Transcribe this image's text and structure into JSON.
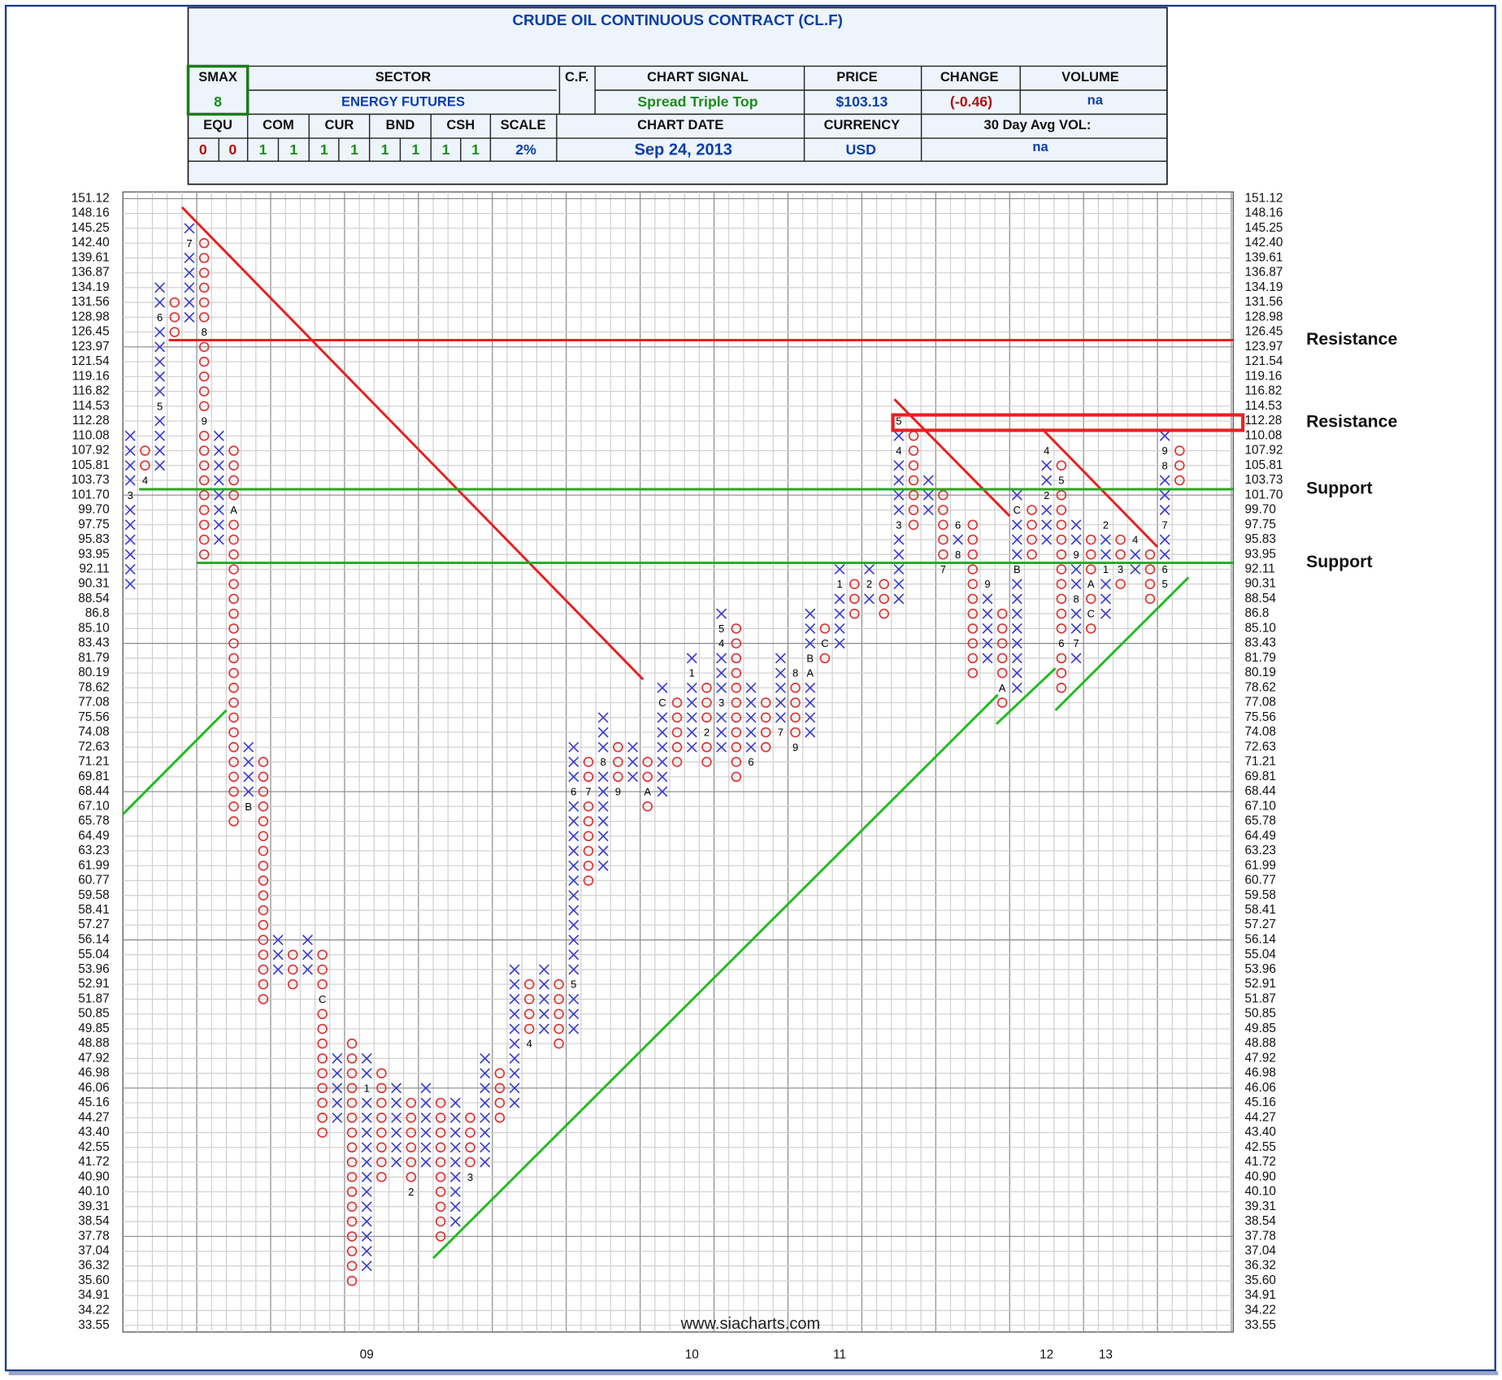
{
  "header": {
    "title": "CRUDE OIL CONTINUOUS CONTRACT (CL.F)",
    "smax_label": "SMAX",
    "smax": 8,
    "sector_label": "SECTOR",
    "sector": "ENERGY FUTURES",
    "cf_label": "C.F.",
    "signal_label": "CHART SIGNAL",
    "signal": "Spread Triple Top",
    "price_label": "PRICE",
    "price": "$103.13",
    "change_label": "CHANGE",
    "change": "(-0.46)",
    "volume_label": "VOLUME",
    "volume": "na",
    "flags": [
      {
        "label": "EQU",
        "values": [
          0,
          0
        ]
      },
      {
        "label": "COM",
        "values": [
          1,
          1
        ]
      },
      {
        "label": "CUR",
        "values": [
          1,
          1
        ]
      },
      {
        "label": "BND",
        "values": [
          1,
          1
        ]
      },
      {
        "label": "CSH",
        "values": [
          1,
          1
        ]
      }
    ],
    "scale_label": "SCALE",
    "scale": "2%",
    "date_label": "CHART DATE",
    "date": "Sep 24, 2013",
    "currency_label": "CURRENCY",
    "currency": "USD",
    "avg_vol_label": "30 Day Avg VOL:",
    "avg_vol": "na"
  },
  "chart_data": {
    "type": "point_and_figure",
    "log_scale": true,
    "grid": true,
    "x_color": "#3b3bd0",
    "o_color": "#e23030",
    "ylim": [
      33.55,
      151.12
    ],
    "yticks": [
      151.12,
      148.16,
      145.25,
      {
        "value": 142.4,
        "label": "142.40"
      },
      139.61,
      136.87,
      134.19,
      131.56,
      128.98,
      126.45,
      123.97,
      121.54,
      119.16,
      116.82,
      114.53,
      112.28,
      110.08,
      107.92,
      105.81,
      103.73,
      {
        "value": 101.7,
        "label": "101.70"
      },
      {
        "value": 99.7,
        "label": "99.70"
      },
      97.75,
      95.83,
      93.95,
      92.11,
      90.31,
      88.54,
      86.8,
      {
        "value": 85.1,
        "label": "85.10"
      },
      83.43,
      81.79,
      80.19,
      78.62,
      77.08,
      75.56,
      74.08,
      72.63,
      71.21,
      69.81,
      68.44,
      {
        "value": 67.1,
        "label": "67.10"
      },
      65.78,
      64.49,
      63.23,
      61.99,
      60.77,
      59.58,
      58.41,
      57.27,
      56.14,
      55.04,
      53.96,
      52.91,
      51.87,
      50.85,
      49.85,
      48.88,
      47.92,
      46.98,
      46.06,
      45.16,
      44.27,
      {
        "value": 43.4,
        "label": "43.40"
      },
      42.55,
      41.72,
      {
        "value": 40.9,
        "label": "40.90"
      },
      {
        "value": 40.1,
        "label": "40.10"
      },
      39.31,
      38.54,
      37.78,
      37.04,
      36.32,
      {
        "value": 35.6,
        "label": "35.60"
      },
      34.91,
      34.22,
      33.55
    ],
    "columns": [
      {
        "type": "X",
        "low": 90.31,
        "high": 110.08,
        "labels": [
          {
            "at": 101.7,
            "text": "3"
          }
        ]
      },
      {
        "type": "O",
        "low": 103.73,
        "high": 107.92,
        "labels": [
          {
            "at": 103.73,
            "text": "4"
          }
        ]
      },
      {
        "type": "X",
        "low": 105.81,
        "high": 134.19,
        "labels": [
          {
            "at": 114.53,
            "text": "5"
          },
          {
            "at": 128.98,
            "text": "6"
          }
        ]
      },
      {
        "type": "O",
        "low": 126.45,
        "high": 131.56
      },
      {
        "type": "X",
        "low": 128.98,
        "high": 145.25,
        "labels": [
          {
            "at": 142.4,
            "text": "7"
          }
        ]
      },
      {
        "type": "O",
        "low": 93.95,
        "high": 142.4,
        "labels": [
          {
            "at": 126.45,
            "text": "8"
          },
          {
            "at": 112.28,
            "text": "9"
          }
        ]
      },
      {
        "type": "X",
        "low": 95.83,
        "high": 110.08
      },
      {
        "type": "O",
        "low": 65.78,
        "high": 107.92,
        "labels": [
          {
            "at": 99.7,
            "text": "A"
          }
        ]
      },
      {
        "type": "X",
        "low": 67.1,
        "high": 72.63,
        "labels": [
          {
            "at": 67.1,
            "text": "B"
          }
        ]
      },
      {
        "type": "O",
        "low": 51.87,
        "high": 71.21
      },
      {
        "type": "X",
        "low": 53.96,
        "high": 56.14
      },
      {
        "type": "O",
        "low": 52.91,
        "high": 55.04
      },
      {
        "type": "X",
        "low": 53.96,
        "high": 56.14
      },
      {
        "type": "O",
        "low": 43.4,
        "high": 55.04,
        "labels": [
          {
            "at": 51.87,
            "text": "C"
          }
        ]
      },
      {
        "type": "X",
        "low": 44.27,
        "high": 47.92
      },
      {
        "type": "O",
        "low": 35.6,
        "high": 48.88
      },
      {
        "type": "X",
        "low": 36.32,
        "high": 47.92,
        "labels": [
          {
            "at": 46.06,
            "text": "1"
          }
        ],
        "year": "09"
      },
      {
        "type": "O",
        "low": 40.9,
        "high": 46.98
      },
      {
        "type": "X",
        "low": 41.72,
        "high": 46.06
      },
      {
        "type": "O",
        "low": 40.1,
        "high": 45.16,
        "labels": [
          {
            "at": 40.1,
            "text": "2"
          }
        ]
      },
      {
        "type": "X",
        "low": 41.72,
        "high": 46.06
      },
      {
        "type": "O",
        "low": 37.78,
        "high": 45.16
      },
      {
        "type": "X",
        "low": 38.54,
        "high": 45.16
      },
      {
        "type": "O",
        "low": 40.9,
        "high": 44.27,
        "labels": [
          {
            "at": 40.9,
            "text": "3"
          }
        ]
      },
      {
        "type": "X",
        "low": 41.72,
        "high": 47.92
      },
      {
        "type": "O",
        "low": 44.27,
        "high": 46.98
      },
      {
        "type": "X",
        "low": 45.16,
        "high": 53.96
      },
      {
        "type": "O",
        "low": 48.88,
        "high": 52.91,
        "labels": [
          {
            "at": 48.88,
            "text": "4"
          }
        ]
      },
      {
        "type": "X",
        "low": 49.85,
        "high": 53.96
      },
      {
        "type": "O",
        "low": 48.88,
        "high": 52.91
      },
      {
        "type": "X",
        "low": 49.85,
        "high": 72.63,
        "labels": [
          {
            "at": 52.91,
            "text": "5"
          },
          {
            "at": 68.44,
            "text": "6"
          }
        ]
      },
      {
        "type": "O",
        "low": 60.77,
        "high": 71.21,
        "labels": [
          {
            "at": 68.44,
            "text": "7"
          }
        ]
      },
      {
        "type": "X",
        "low": 61.99,
        "high": 75.56,
        "labels": [
          {
            "at": 71.21,
            "text": "8"
          }
        ]
      },
      {
        "type": "O",
        "low": 68.44,
        "high": 72.63,
        "labels": [
          {
            "at": 68.44,
            "text": "9"
          }
        ]
      },
      {
        "type": "X",
        "low": 69.81,
        "high": 72.63
      },
      {
        "type": "O",
        "low": 67.1,
        "high": 71.21,
        "labels": [
          {
            "at": 68.44,
            "text": "A"
          }
        ]
      },
      {
        "type": "X",
        "low": 68.44,
        "high": 78.62,
        "labels": [
          {
            "at": 77.08,
            "text": "C"
          }
        ]
      },
      {
        "type": "O",
        "low": 71.21,
        "high": 77.08
      },
      {
        "type": "X",
        "low": 72.63,
        "high": 81.79,
        "labels": [
          {
            "at": 80.19,
            "text": "1"
          }
        ],
        "year": "10"
      },
      {
        "type": "O",
        "low": 71.21,
        "high": 78.62,
        "labels": [
          {
            "at": 74.08,
            "text": "2"
          }
        ]
      },
      {
        "type": "X",
        "low": 72.63,
        "high": 86.8,
        "labels": [
          {
            "at": 77.08,
            "text": "3"
          },
          {
            "at": 83.43,
            "text": "4"
          },
          {
            "at": 85.1,
            "text": "5"
          }
        ]
      },
      {
        "type": "O",
        "low": 69.81,
        "high": 85.1
      },
      {
        "type": "X",
        "low": 71.21,
        "high": 78.62,
        "labels": [
          {
            "at": 71.21,
            "text": "6"
          }
        ]
      },
      {
        "type": "O",
        "low": 72.63,
        "high": 77.08
      },
      {
        "type": "X",
        "low": 74.08,
        "high": 81.79,
        "labels": [
          {
            "at": 74.08,
            "text": "7"
          }
        ]
      },
      {
        "type": "O",
        "low": 72.63,
        "high": 80.19,
        "labels": [
          {
            "at": 80.19,
            "text": "8"
          },
          {
            "at": 72.63,
            "text": "9"
          }
        ]
      },
      {
        "type": "X",
        "low": 74.08,
        "high": 86.8,
        "labels": [
          {
            "at": 80.19,
            "text": "A"
          },
          {
            "at": 81.79,
            "text": "B"
          }
        ]
      },
      {
        "type": "O",
        "low": 81.79,
        "high": 85.1,
        "labels": [
          {
            "at": 83.43,
            "text": "C"
          }
        ]
      },
      {
        "type": "X",
        "low": 83.43,
        "high": 92.11,
        "labels": [
          {
            "at": 90.31,
            "text": "1"
          }
        ],
        "year": "11"
      },
      {
        "type": "O",
        "low": 86.8,
        "high": 90.31
      },
      {
        "type": "X",
        "low": 88.54,
        "high": 92.11,
        "labels": [
          {
            "at": 90.31,
            "text": "2"
          }
        ]
      },
      {
        "type": "O",
        "low": 86.8,
        "high": 90.31
      },
      {
        "type": "X",
        "low": 88.54,
        "high": 112.28,
        "labels": [
          {
            "at": 97.75,
            "text": "3"
          },
          {
            "at": 107.92,
            "text": "4"
          },
          {
            "at": 112.28,
            "text": "5"
          }
        ]
      },
      {
        "type": "O",
        "low": 97.75,
        "high": 110.08
      },
      {
        "type": "X",
        "low": 99.7,
        "high": 103.73
      },
      {
        "type": "O",
        "low": 92.11,
        "high": 101.7,
        "labels": [
          {
            "at": 92.11,
            "text": "7"
          }
        ]
      },
      {
        "type": "X",
        "low": 93.95,
        "high": 97.75,
        "labels": [
          {
            "at": 97.75,
            "text": "6"
          },
          {
            "at": 93.95,
            "text": "8"
          }
        ]
      },
      {
        "type": "O",
        "low": 80.19,
        "high": 97.75
      },
      {
        "type": "X",
        "low": 81.79,
        "high": 90.31,
        "labels": [
          {
            "at": 90.31,
            "text": "9"
          }
        ]
      },
      {
        "type": "O",
        "low": 77.08,
        "high": 86.8,
        "labels": [
          {
            "at": 78.62,
            "text": "A"
          }
        ]
      },
      {
        "type": "X",
        "low": 78.62,
        "high": 101.7,
        "labels": [
          {
            "at": 92.11,
            "text": "B"
          },
          {
            "at": 99.7,
            "text": "C"
          }
        ]
      },
      {
        "type": "O",
        "low": 93.95,
        "high": 99.7
      },
      {
        "type": "X",
        "low": 95.83,
        "high": 107.92,
        "labels": [
          {
            "at": 101.7,
            "text": "2"
          },
          {
            "at": 107.92,
            "text": "4"
          }
        ],
        "year": "12"
      },
      {
        "type": "O",
        "low": 78.62,
        "high": 105.81,
        "labels": [
          {
            "at": 103.73,
            "text": "5"
          },
          {
            "at": 83.43,
            "text": "6"
          }
        ]
      },
      {
        "type": "X",
        "low": 81.79,
        "high": 97.75,
        "labels": [
          {
            "at": 83.43,
            "text": "7"
          },
          {
            "at": 88.54,
            "text": "8"
          },
          {
            "at": 93.95,
            "text": "9"
          }
        ]
      },
      {
        "type": "O",
        "low": 85.1,
        "high": 95.83,
        "labels": [
          {
            "at": 90.31,
            "text": "A"
          },
          {
            "at": 86.8,
            "text": "C"
          }
        ]
      },
      {
        "type": "X",
        "low": 86.8,
        "high": 97.75,
        "labels": [
          {
            "at": 92.11,
            "text": "1"
          },
          {
            "at": 97.75,
            "text": "2"
          }
        ],
        "year": "13"
      },
      {
        "type": "O",
        "low": 90.31,
        "high": 95.83,
        "labels": [
          {
            "at": 92.11,
            "text": "3"
          }
        ]
      },
      {
        "type": "X",
        "low": 92.11,
        "high": 95.83,
        "labels": [
          {
            "at": 95.83,
            "text": "4"
          }
        ]
      },
      {
        "type": "O",
        "low": 88.54,
        "high": 93.95
      },
      {
        "type": "X",
        "low": 90.31,
        "high": 110.08,
        "labels": [
          {
            "at": 90.31,
            "text": "5"
          },
          {
            "at": 92.11,
            "text": "6"
          },
          {
            "at": 97.75,
            "text": "7"
          },
          {
            "at": 105.81,
            "text": "8"
          },
          {
            "at": 107.92,
            "text": "9"
          }
        ]
      },
      {
        "type": "O",
        "low": 103.73,
        "high": 107.92
      }
    ],
    "trendlines": [
      {
        "color": "#e82020",
        "from": [
          3.5,
          149.4
        ],
        "to": [
          34.7,
          79.5
        ]
      },
      {
        "color": "#e82020",
        "from": [
          51.7,
          115.6
        ],
        "to": [
          59.5,
          98.9
        ]
      },
      {
        "color": "#e82020",
        "from": [
          61.7,
          111.1
        ],
        "to": [
          69.5,
          94.9
        ]
      },
      {
        "color": "#22bb22",
        "from": [
          -0.5,
          66.4
        ],
        "to": [
          6.5,
          76.3
        ]
      },
      {
        "color": "#22bb22",
        "from": [
          20.5,
          36.7
        ],
        "to": [
          58.7,
          77.9
        ]
      },
      {
        "color": "#22bb22",
        "from": [
          58.6,
          74.9
        ],
        "to": [
          62.6,
          80.7
        ]
      },
      {
        "color": "#22bb22",
        "from": [
          62.6,
          76.3
        ],
        "to": [
          71.6,
          91.1
        ]
      }
    ],
    "levels": [
      {
        "label": "Resistance",
        "color": "#e82020",
        "from": 2.6,
        "values": [
          125.1
        ]
      },
      {
        "label": "Resistance",
        "color": "#e82020",
        "from": 51.6,
        "values": [
          110.9,
          113.2
        ]
      },
      {
        "label": "Support",
        "color": "#22aa22",
        "from": 0.6,
        "values": [
          102.5
        ]
      },
      {
        "label": "Support",
        "color": "#22aa22",
        "from": 4.5,
        "values": [
          92.9
        ]
      }
    ],
    "source": "www.siacharts.com"
  }
}
